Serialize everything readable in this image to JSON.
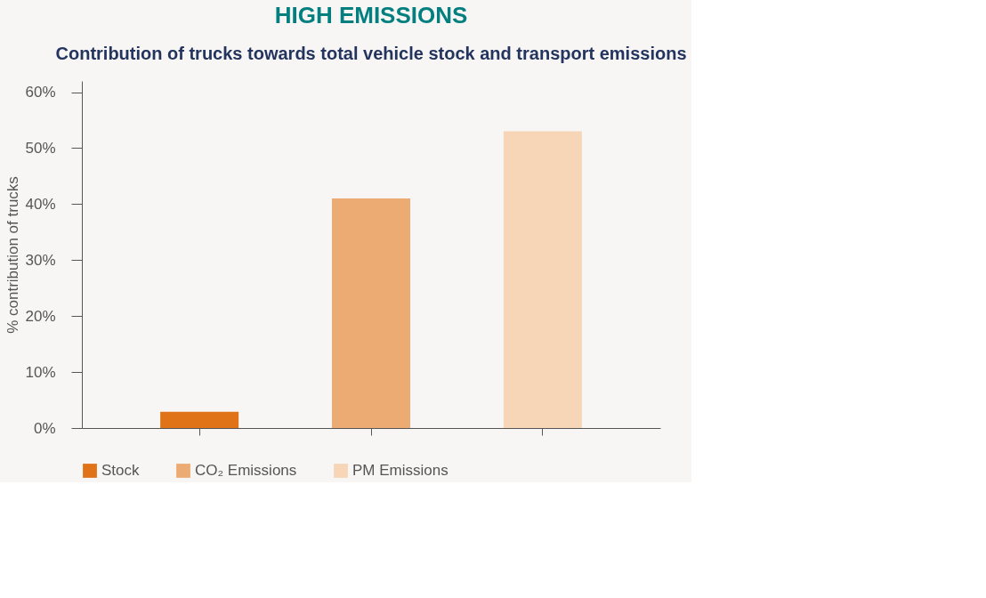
{
  "chart_data": {
    "type": "bar",
    "title": "HIGH EMISSIONS",
    "subtitle": "Contribution of trucks towards total vehicle stock and transport emissions",
    "ylabel": "% contribution of trucks",
    "categories": [
      null,
      null,
      null
    ],
    "series": [
      {
        "name": "Stock",
        "color": "#e07317",
        "values": [
          2.9,
          null,
          null
        ]
      },
      {
        "name": "CO₂ Emissions",
        "color": "#ecab72",
        "values": [
          null,
          41,
          null
        ]
      },
      {
        "name": "PM Emissions",
        "color": "#f6d6b7",
        "values": [
          null,
          null,
          53
        ]
      }
    ],
    "ylim": [
      0,
      62
    ],
    "yticks": [
      {
        "value": 0,
        "label": "0%"
      },
      {
        "value": 10,
        "label": "10%"
      },
      {
        "value": 20,
        "label": "20%"
      },
      {
        "value": 30,
        "label": "30%"
      },
      {
        "value": 40,
        "label": "40%"
      },
      {
        "value": 50,
        "label": "50%"
      },
      {
        "value": 60,
        "label": "60%"
      }
    ],
    "grid": false,
    "legend": "bottom",
    "tick_labels": "y"
  }
}
